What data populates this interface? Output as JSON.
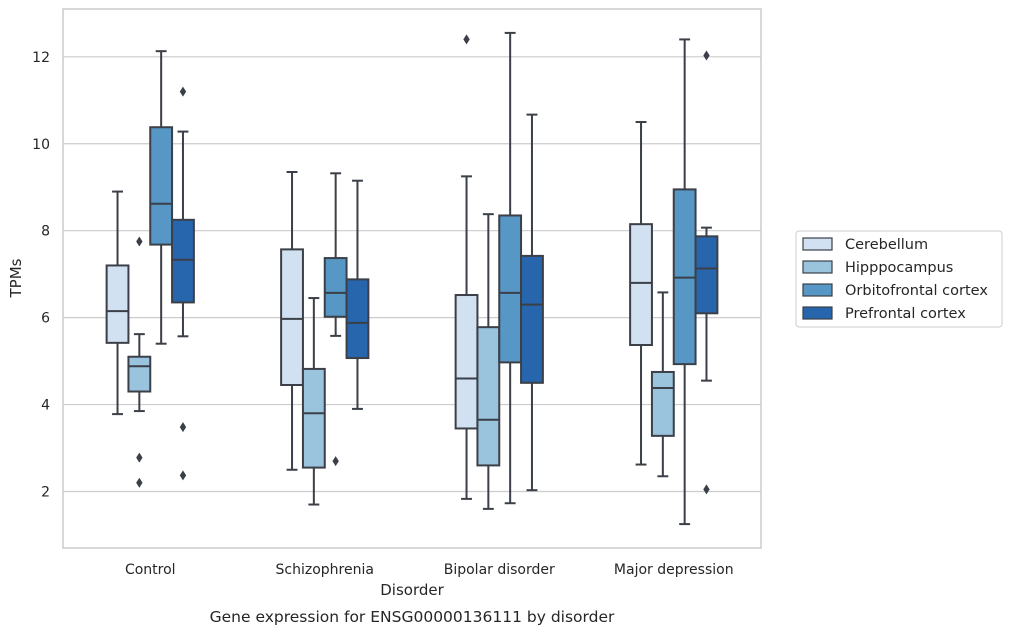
{
  "chart_data": {
    "type": "box",
    "title": "Gene expression for ENSG00000136111 by disorder",
    "xlabel": "Disorder",
    "ylabel": "TPMs",
    "ylim": [
      0.7,
      13.1
    ],
    "yticks": [
      2,
      4,
      6,
      8,
      10,
      12
    ],
    "grid": "horizontal",
    "legend_placement": "right",
    "categories": [
      "Control",
      "Schizophrenia",
      "Bipolar disorder",
      "Major depression"
    ],
    "series": [
      {
        "name": "Cerebellum",
        "color": "#d2e1f1",
        "boxes": [
          {
            "low": 3.78,
            "q1": 5.42,
            "median": 6.15,
            "q3": 7.2,
            "high": 8.9,
            "outliers": []
          },
          {
            "low": 2.5,
            "q1": 4.45,
            "median": 5.97,
            "q3": 7.57,
            "high": 9.35,
            "outliers": []
          },
          {
            "low": 1.83,
            "q1": 3.45,
            "median": 4.6,
            "q3": 6.52,
            "high": 9.25,
            "outliers": [
              12.4
            ]
          },
          {
            "low": 2.62,
            "q1": 5.37,
            "median": 6.8,
            "q3": 8.15,
            "high": 10.5,
            "outliers": []
          }
        ]
      },
      {
        "name": "Hipppocampus",
        "color": "#9ac4de",
        "boxes": [
          {
            "low": 3.85,
            "q1": 4.3,
            "median": 4.88,
            "q3": 5.1,
            "high": 5.62,
            "outliers": [
              7.75,
              2.78,
              2.2
            ]
          },
          {
            "low": 1.7,
            "q1": 2.55,
            "median": 3.8,
            "q3": 4.82,
            "high": 6.45,
            "outliers": []
          },
          {
            "low": 1.6,
            "q1": 2.6,
            "median": 3.65,
            "q3": 5.78,
            "high": 8.38,
            "outliers": []
          },
          {
            "low": 2.35,
            "q1": 3.28,
            "median": 4.38,
            "q3": 4.75,
            "high": 6.58,
            "outliers": []
          }
        ]
      },
      {
        "name": "Orbitofrontal cortex",
        "color": "#5697c6",
        "boxes": [
          {
            "low": 5.4,
            "q1": 7.68,
            "median": 8.62,
            "q3": 10.38,
            "high": 12.13,
            "outliers": []
          },
          {
            "low": 5.58,
            "q1": 6.02,
            "median": 6.57,
            "q3": 7.37,
            "high": 9.32,
            "outliers": [
              2.7
            ]
          },
          {
            "low": 1.73,
            "q1": 4.97,
            "median": 6.57,
            "q3": 8.35,
            "high": 12.55,
            "outliers": []
          },
          {
            "low": 1.25,
            "q1": 4.93,
            "median": 6.92,
            "q3": 8.95,
            "high": 12.4,
            "outliers": []
          }
        ]
      },
      {
        "name": "Prefrontal cortex",
        "color": "#2766ac",
        "boxes": [
          {
            "low": 5.57,
            "q1": 6.35,
            "median": 7.33,
            "q3": 8.25,
            "high": 10.28,
            "outliers": [
              11.2,
              3.48,
              2.37
            ]
          },
          {
            "low": 3.9,
            "q1": 5.07,
            "median": 5.88,
            "q3": 6.88,
            "high": 9.15,
            "outliers": []
          },
          {
            "low": 2.03,
            "q1": 4.5,
            "median": 6.3,
            "q3": 7.42,
            "high": 10.67,
            "outliers": []
          },
          {
            "low": 4.55,
            "q1": 6.1,
            "median": 7.13,
            "q3": 7.87,
            "high": 8.07,
            "outliers": [
              12.03,
              2.05
            ]
          }
        ]
      }
    ]
  },
  "colors": {
    "grid": "#cccccc",
    "frame": "#cccccc",
    "line": "#3b3f47"
  }
}
